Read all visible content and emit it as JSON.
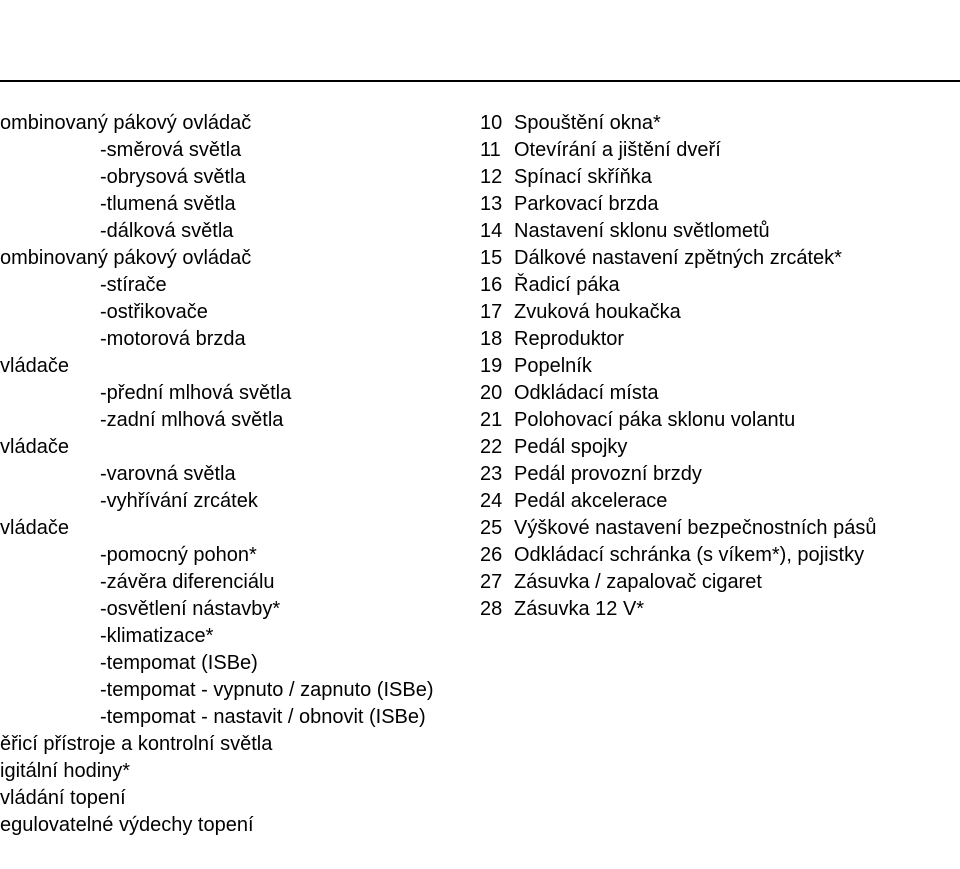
{
  "left": {
    "g1_head": "ombinovaný pákový ovládač",
    "g1_items": [
      "-směrová světla",
      "-obrysová světla",
      "-tlumená světla",
      "-dálková světla"
    ],
    "g2_head": "ombinovaný pákový ovládač",
    "g2_items": [
      "-stírače",
      "-ostřikovače",
      "-motorová brzda"
    ],
    "g3_head": "vládače",
    "g3_items": [
      "-přední mlhová světla",
      "-zadní mlhová světla"
    ],
    "g4_head": "vládače",
    "g4_items": [
      "-varovná světla",
      "-vyhřívání zrcátek"
    ],
    "g5_head": "vládače",
    "g5_items": [
      "-pomocný pohon*",
      "-závěra diferenciálu",
      "-osvětlení nástavby*",
      "-klimatizace*",
      "-tempomat (ISBe)",
      "-tempomat - vypnuto / zapnuto (ISBe)",
      "-tempomat - nastavit / obnovit (ISBe)"
    ],
    "tail": [
      "ěřicí přístroje a kontrolní světla",
      "igitální hodiny*",
      "vládání topení",
      "egulovatelné výdechy topení"
    ]
  },
  "right": [
    {
      "n": "10",
      "t": "Spouštění okna*"
    },
    {
      "n": "11",
      "t": "Otevírání a jištění dveří"
    },
    {
      "n": "12",
      "t": "Spínací skříňka"
    },
    {
      "n": "13",
      "t": "Parkovací brzda"
    },
    {
      "n": "14",
      "t": "Nastavení sklonu světlometů"
    },
    {
      "n": "15",
      "t": "Dálkové nastavení zpětných zrcátek*"
    },
    {
      "n": "16",
      "t": "Řadicí páka"
    },
    {
      "n": "17",
      "t": "Zvuková houkačka"
    },
    {
      "n": "18",
      "t": "Reproduktor"
    },
    {
      "n": "19",
      "t": "Popelník"
    },
    {
      "n": "20",
      "t": "Odkládací místa"
    },
    {
      "n": "21",
      "t": "Polohovací páka sklonu volantu"
    },
    {
      "n": "22",
      "t": "Pedál spojky"
    },
    {
      "n": "23",
      "t": "Pedál provozní brzdy"
    },
    {
      "n": "24",
      "t": "Pedál akcelerace"
    },
    {
      "n": "25",
      "t": "Výškové nastavení bezpečnostních pásů"
    },
    {
      "n": "26",
      "t": "Odkládací schránka (s víkem*), pojistky"
    },
    {
      "n": "27",
      "t": "Zásuvka / zapalovač cigaret"
    },
    {
      "n": "28",
      "t": "Zásuvka 12 V*"
    }
  ]
}
